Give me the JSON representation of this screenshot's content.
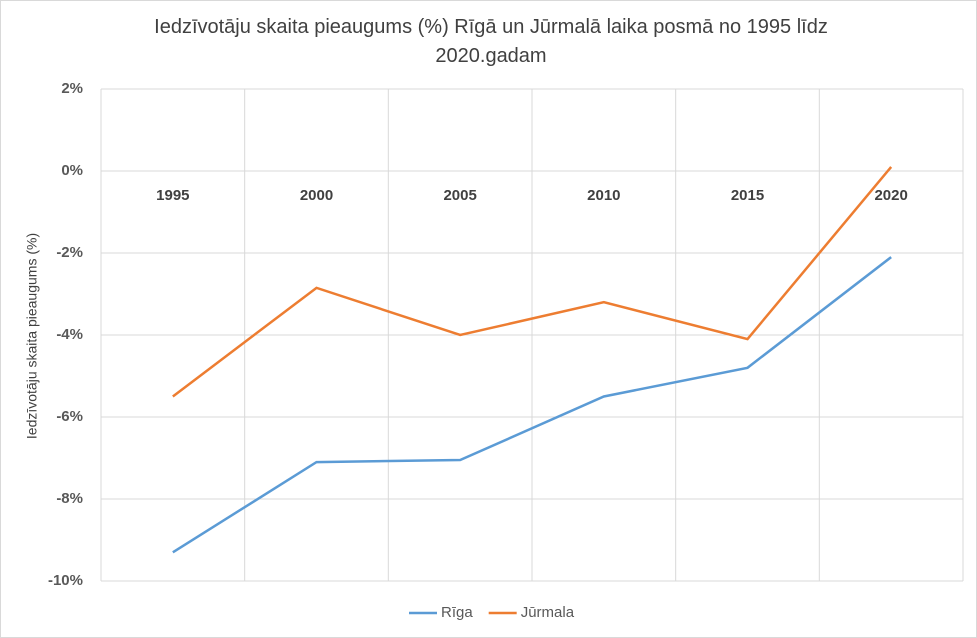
{
  "chart_data": {
    "type": "line",
    "title": "Iedzīvotāju skaita pieaugums (%) Rīgā un Jūrmalā laika posmā no 1995 līdz 2020.gadam",
    "y_label": "Iedzīvotāju skaita pieaugums (%)",
    "categories": [
      "1995",
      "2000",
      "2005",
      "2010",
      "2015",
      "2020"
    ],
    "series": [
      {
        "name": "Rīga",
        "color": "#5b9bd5",
        "values": [
          -9.3,
          -7.1,
          -7.05,
          -5.5,
          -4.8,
          -2.1
        ]
      },
      {
        "name": "Jūrmala",
        "color": "#ed7d31",
        "values": [
          -5.5,
          -2.85,
          -4.0,
          -3.2,
          -4.1,
          0.1
        ]
      }
    ],
    "ylim": [
      -10,
      2
    ],
    "yticks": [
      {
        "value": -10,
        "label": "-10%"
      },
      {
        "value": -8,
        "label": "-8%"
      },
      {
        "value": -6,
        "label": "-6%"
      },
      {
        "value": -4,
        "label": "-4%"
      },
      {
        "value": -2,
        "label": "-2%"
      },
      {
        "value": 0,
        "label": "0%"
      },
      {
        "value": 2,
        "label": "2%"
      }
    ],
    "grid": true
  }
}
